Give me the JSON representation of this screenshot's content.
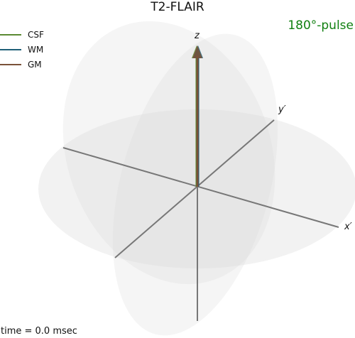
{
  "title": "T2-FLAIR",
  "pulse_label": "180°-pulse",
  "pulse_color": "#118011",
  "time_label": "time = 0.0 msec",
  "legend": [
    {
      "name": "CSF",
      "color": "#5b8a32"
    },
    {
      "name": "WM",
      "color": "#1f5f78"
    },
    {
      "name": "GM",
      "color": "#7a5238"
    }
  ],
  "axes": {
    "x": "x′",
    "y": "y′",
    "z": "z"
  }
}
